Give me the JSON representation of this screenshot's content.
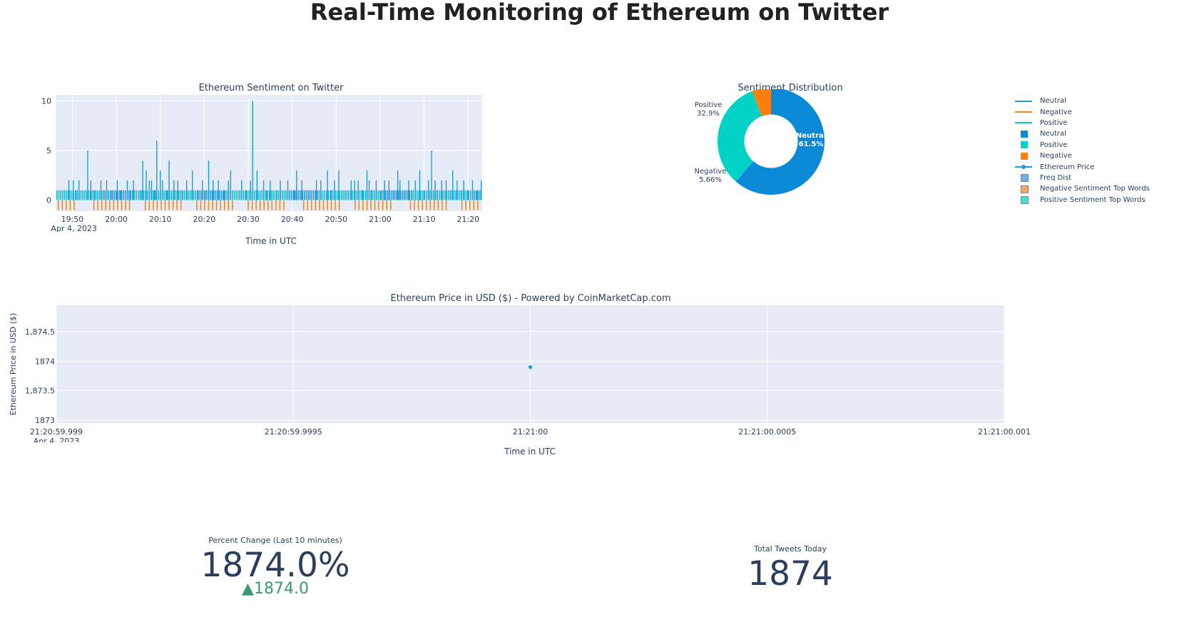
{
  "title": "Real-Time Monitoring of Ethereum on Twitter",
  "colors": {
    "neutral_line": "#1f9bdc",
    "negative": "#f58518",
    "positive_line": "#17becf",
    "pie_neutral": "#0a89d6",
    "pie_positive": "#00d2c8",
    "pie_negative": "#ff7f0e",
    "plot_bg": "#e5ecf6",
    "delta_up": "#3d9970"
  },
  "chart_data": [
    {
      "type": "line",
      "title": "Ethereum Sentiment on Twitter",
      "xlabel": "Time in UTC",
      "ylabel": "",
      "x_ticks": [
        "19:50",
        "20:00",
        "20:10",
        "20:20",
        "20:30",
        "20:40",
        "20:50",
        "21:00",
        "21:10",
        "21:20"
      ],
      "x_date_label": "Apr 4, 2023",
      "x_range_minutes": [
        -3.8,
        93.2
      ],
      "y_ticks": [
        "0",
        "5",
        "10"
      ],
      "ylim": [
        -1.1,
        10.6
      ],
      "series": [
        {
          "name": "Neutral",
          "description": "per-tweet counts, mostly 1 with spikes",
          "spikes": [
            [
              -0.8,
              2
            ],
            [
              0.2,
              2
            ],
            [
              0.8,
              1
            ],
            [
              1.5,
              2
            ],
            [
              3.5,
              5
            ],
            [
              4.2,
              2
            ],
            [
              5.0,
              1
            ],
            [
              6.5,
              2
            ],
            [
              7.8,
              2
            ],
            [
              9.0,
              1
            ],
            [
              10.2,
              2
            ],
            [
              11.0,
              1
            ],
            [
              12.5,
              2
            ],
            [
              13.2,
              1
            ],
            [
              13.9,
              2
            ],
            [
              15.5,
              1
            ],
            [
              16.0,
              4
            ],
            [
              16.8,
              3
            ],
            [
              17.5,
              2
            ],
            [
              18.0,
              2
            ],
            [
              18.6,
              1
            ],
            [
              18.9,
              1
            ],
            [
              19.2,
              6
            ],
            [
              20.0,
              3
            ],
            [
              20.5,
              2
            ],
            [
              21.5,
              1
            ],
            [
              22.0,
              4
            ],
            [
              23.1,
              2
            ],
            [
              24.0,
              2
            ],
            [
              25.0,
              1
            ],
            [
              26.0,
              2
            ],
            [
              27.3,
              3
            ],
            [
              28.5,
              1
            ],
            [
              29.6,
              2
            ],
            [
              30.2,
              1
            ],
            [
              31.0,
              4
            ],
            [
              32.0,
              2
            ],
            [
              33.2,
              2
            ],
            [
              34.5,
              1
            ],
            [
              35.5,
              2
            ],
            [
              36.0,
              3
            ],
            [
              38.5,
              2
            ],
            [
              39.5,
              1
            ],
            [
              40.5,
              2
            ],
            [
              41.0,
              10
            ],
            [
              42.0,
              3
            ],
            [
              43.5,
              2
            ],
            [
              44.2,
              1
            ],
            [
              45.0,
              2
            ],
            [
              46.5,
              1
            ],
            [
              47.3,
              2
            ],
            [
              49.0,
              2
            ],
            [
              50.5,
              1
            ],
            [
              51.0,
              3
            ],
            [
              52.2,
              2
            ],
            [
              54.0,
              1
            ],
            [
              55.5,
              2
            ],
            [
              56.5,
              2
            ],
            [
              58.0,
              3
            ],
            [
              58.8,
              1
            ],
            [
              59.6,
              2
            ],
            [
              60.6,
              3
            ],
            [
              62.0,
              1
            ],
            [
              63.4,
              2
            ],
            [
              64.2,
              2
            ],
            [
              65.0,
              2
            ],
            [
              66.0,
              1
            ],
            [
              67.0,
              3
            ],
            [
              67.5,
              2
            ],
            [
              68.0,
              1
            ],
            [
              69.1,
              2
            ],
            [
              70.1,
              1
            ],
            [
              71.0,
              2
            ],
            [
              72.0,
              2
            ],
            [
              73.0,
              1
            ],
            [
              74.0,
              3
            ],
            [
              74.5,
              2
            ],
            [
              75.5,
              1
            ],
            [
              76.5,
              2
            ],
            [
              77.2,
              1
            ],
            [
              78.0,
              2
            ],
            [
              79.0,
              3
            ],
            [
              80.0,
              1
            ],
            [
              81.0,
              2
            ],
            [
              81.7,
              5
            ],
            [
              82.5,
              2
            ],
            [
              83.0,
              1
            ],
            [
              84.0,
              2
            ],
            [
              85.0,
              2
            ],
            [
              86.0,
              1
            ],
            [
              86.5,
              3
            ],
            [
              87.5,
              2
            ],
            [
              88.5,
              1
            ],
            [
              89.0,
              2
            ],
            [
              90.0,
              1
            ],
            [
              91.0,
              2
            ],
            [
              92.0,
              1
            ],
            [
              93.0,
              2
            ]
          ]
        },
        {
          "name": "Negative",
          "description": "per-tweet counts at -1"
        },
        {
          "name": "Positive",
          "description": "per-tweet counts, mostly 1"
        }
      ]
    },
    {
      "type": "pie",
      "title": "Sentiment Distribution",
      "hole": 0.5,
      "labels": [
        "Neutral",
        "Positive",
        "Negative"
      ],
      "values": [
        61.5,
        32.9,
        5.66
      ],
      "text": [
        "Neutral\n61.5%",
        "Positive\n32.9%",
        "Negative\n5.66%"
      ]
    },
    {
      "type": "scatter",
      "title": "Ethereum Price in USD ($) - Powered by CoinMarketCap.com",
      "xlabel": "Time in UTC",
      "ylabel": "Ethereum Price in USD ($)",
      "x_ticks": [
        "21:20:59.999",
        "21:20:59.9995",
        "21:21:00",
        "21:21:00.0005",
        "21:21:00.001"
      ],
      "x_date_label": "Apr 4, 2023",
      "y_ticks": [
        "1873",
        "1,873.5",
        "1874",
        "1,874.5"
      ],
      "ylim": [
        1872.95,
        1874.95
      ],
      "points": [
        {
          "x": "21:21:00",
          "y": 1873.9
        }
      ],
      "series_name": "Ethereum Price"
    }
  ],
  "legend": [
    {
      "label": "Neutral",
      "symbol": "line",
      "color": "#1f9bdc"
    },
    {
      "label": "Negative",
      "symbol": "line",
      "color": "#f58518"
    },
    {
      "label": "Positive",
      "symbol": "line",
      "color": "#17becf"
    },
    {
      "label": "Neutral",
      "symbol": "square",
      "color": "#0a89d6"
    },
    {
      "label": "Positive",
      "symbol": "square",
      "color": "#00d2c8"
    },
    {
      "label": "Negative",
      "symbol": "square",
      "color": "#ff7f0e"
    },
    {
      "label": "Ethereum Price",
      "symbol": "line-marker",
      "color": "#1f9bdc"
    },
    {
      "label": "Freq Dist",
      "symbol": "square-light",
      "color": "#5aaae6"
    },
    {
      "label": "Negative Sentiment Top Words",
      "symbol": "square-light",
      "color": "#f0a050"
    },
    {
      "label": "Positive Sentiment Top Words",
      "symbol": "square-light",
      "color": "#40d6cc"
    }
  ],
  "indicators": {
    "percent_change": {
      "title": "Percent Change (Last 10 minutes)",
      "value": "1874.0%",
      "delta": "▲1874.0"
    },
    "total_tweets": {
      "title": "Total Tweets Today",
      "value": "1874"
    }
  }
}
